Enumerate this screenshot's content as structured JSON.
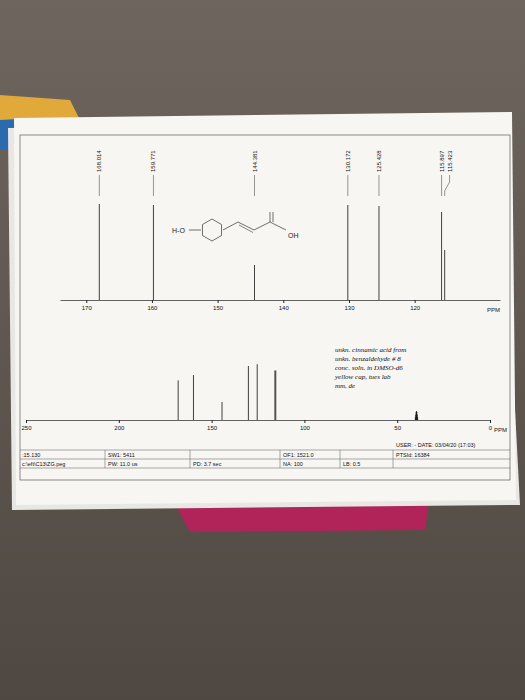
{
  "chart_data": [
    {
      "type": "stem",
      "x": [
        168.014,
        159.771,
        144.381,
        130.172,
        125.428,
        115.897,
        115.423
      ],
      "values": [
        0.96,
        0.95,
        0.35,
        0.95,
        0.94,
        0.88,
        0.5
      ],
      "peak_labels": [
        "168.014",
        "159.771",
        "144.381",
        "130.172",
        "125.428",
        "115.897",
        "115.423"
      ],
      "xlim": [
        174,
        107
      ],
      "xticks": [
        170,
        160,
        150,
        140,
        130,
        120
      ],
      "xlabel": "PPM",
      "ylim": [
        0,
        1
      ],
      "tick_labels": "x",
      "color": "#111111",
      "annotations": [
        "H-O",
        "OH"
      ]
    },
    {
      "type": "stem",
      "x": [
        168.014,
        159.771,
        144.381,
        130.172,
        125.428,
        115.897,
        115.423,
        40.229,
        40.021,
        39.812,
        39.604,
        39.395,
        39.187,
        38.978
      ],
      "values": [
        0.44,
        0.5,
        0.2,
        0.6,
        0.62,
        0.55,
        0.55,
        0.03,
        0.06,
        0.09,
        0.1,
        0.09,
        0.06,
        0.03
      ],
      "xlim": [
        250,
        0
      ],
      "xticks": [
        250,
        200,
        150,
        100,
        50,
        0
      ],
      "xlabel": "PPM",
      "ylim": [
        0,
        1
      ],
      "tick_labels": "x",
      "color": "#111111",
      "annotations": [
        "unkn. cinnamic acid from",
        "unkn. benzaldehyde # 8",
        "conc. soln. in DMSO-d6",
        "yellow cap, tues lab",
        "mm, de"
      ],
      "footer": [
        "USER:  - DATE: 03/04/20 (17:03)",
        ":15.130",
        "SW1: 5411",
        "OF1: 1521.0",
        "PTSId: 16384",
        "c:\\eft\\C13\\ZG.peg",
        "PW: 11.0 us",
        "PD: 3.7 sec",
        "NA: 100",
        "LB: 0.5"
      ]
    }
  ]
}
